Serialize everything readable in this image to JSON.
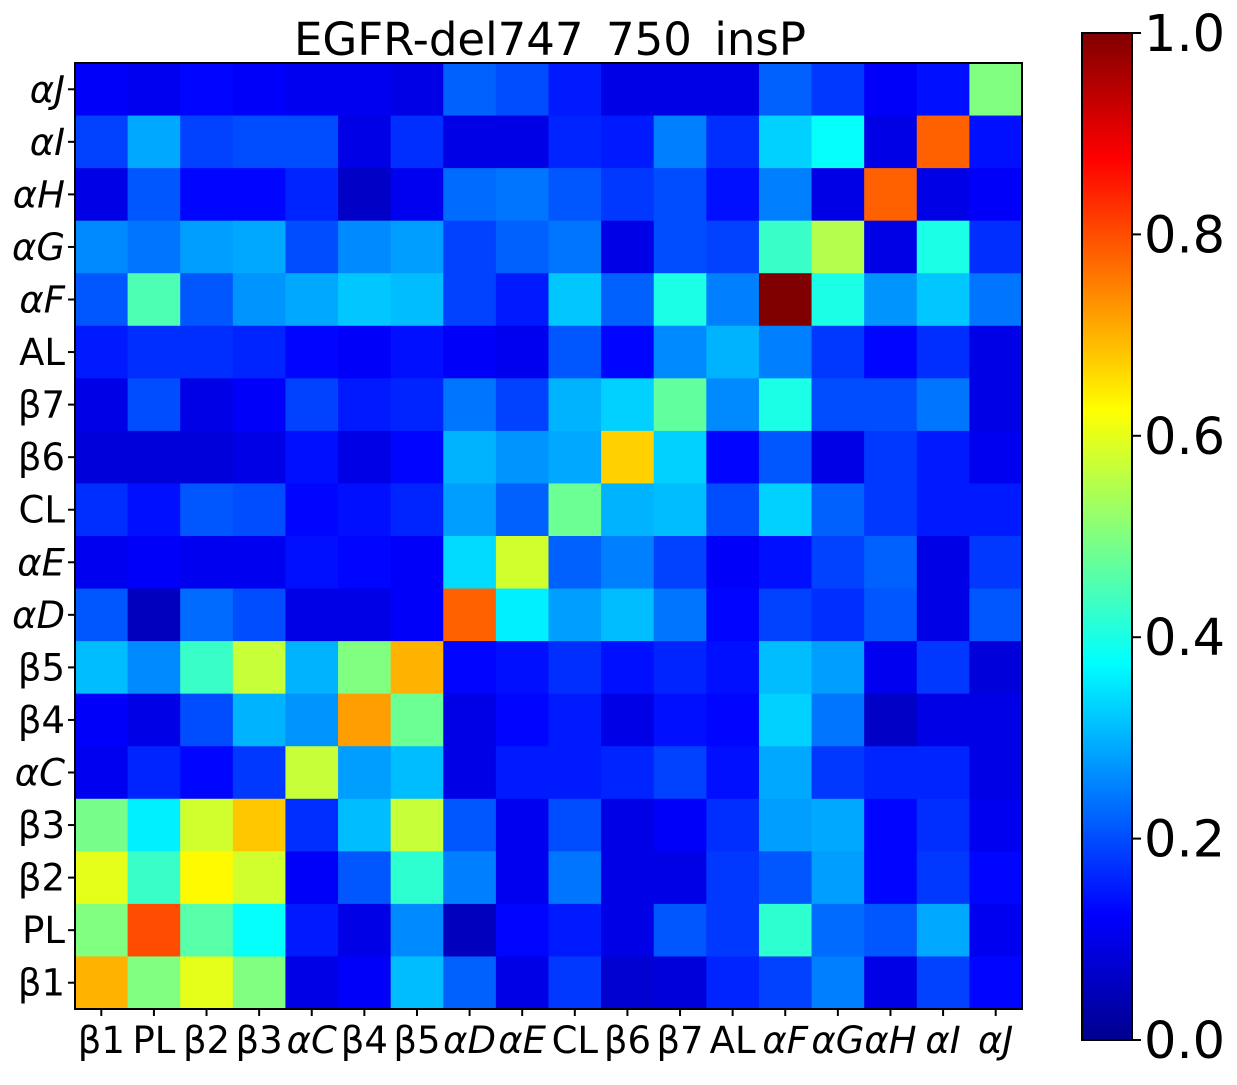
{
  "chart_data": {
    "type": "heatmap",
    "title": "EGFR-del747_750_insP",
    "xlabel": "",
    "ylabel": "",
    "x_categories": [
      "β1",
      "PL",
      "β2",
      "β3",
      "αC",
      "β4",
      "β5",
      "αD",
      "αE",
      "CL",
      "β6",
      "β7",
      "AL",
      "αF",
      "αG",
      "αH",
      "αI",
      "αJ"
    ],
    "y_categories_bottom_to_top": [
      "β1",
      "PL",
      "β2",
      "β3",
      "αC",
      "β4",
      "β5",
      "αD",
      "αE",
      "CL",
      "β6",
      "β7",
      "AL",
      "αF",
      "αG",
      "αH",
      "αI",
      "αJ"
    ],
    "italic_labels": [
      "αC",
      "αD",
      "αE",
      "αF",
      "αG",
      "αH",
      "αI",
      "αJ"
    ],
    "rows_top_to_bottom": [
      {
        "y": "αJ",
        "values": [
          0.12,
          0.11,
          0.13,
          0.12,
          0.11,
          0.11,
          0.1,
          0.22,
          0.2,
          0.15,
          0.1,
          0.1,
          0.1,
          0.22,
          0.18,
          0.12,
          0.14,
          0.5
        ]
      },
      {
        "y": "αI",
        "values": [
          0.19,
          0.29,
          0.19,
          0.2,
          0.2,
          0.1,
          0.17,
          0.1,
          0.1,
          0.16,
          0.15,
          0.25,
          0.17,
          0.33,
          0.38,
          0.1,
          0.78,
          0.14
        ]
      },
      {
        "y": "αH",
        "values": [
          0.1,
          0.21,
          0.13,
          0.13,
          0.16,
          0.07,
          0.11,
          0.23,
          0.24,
          0.21,
          0.18,
          0.2,
          0.14,
          0.25,
          0.1,
          0.78,
          0.1,
          0.12
        ]
      },
      {
        "y": "αG",
        "values": [
          0.26,
          0.24,
          0.28,
          0.29,
          0.2,
          0.26,
          0.28,
          0.19,
          0.22,
          0.24,
          0.1,
          0.2,
          0.19,
          0.43,
          0.55,
          0.1,
          0.4,
          0.17
        ]
      },
      {
        "y": "αF",
        "values": [
          0.21,
          0.45,
          0.21,
          0.27,
          0.29,
          0.32,
          0.31,
          0.19,
          0.15,
          0.32,
          0.22,
          0.4,
          0.25,
          1.0,
          0.4,
          0.27,
          0.32,
          0.24
        ]
      },
      {
        "y": "AL",
        "values": [
          0.15,
          0.17,
          0.17,
          0.16,
          0.13,
          0.12,
          0.14,
          0.12,
          0.11,
          0.21,
          0.13,
          0.26,
          0.3,
          0.25,
          0.18,
          0.13,
          0.17,
          0.1
        ]
      },
      {
        "y": "β7",
        "values": [
          0.1,
          0.2,
          0.1,
          0.12,
          0.19,
          0.15,
          0.16,
          0.24,
          0.19,
          0.3,
          0.33,
          0.47,
          0.26,
          0.4,
          0.2,
          0.2,
          0.24,
          0.1
        ]
      },
      {
        "y": "β6",
        "values": [
          0.09,
          0.09,
          0.09,
          0.1,
          0.14,
          0.1,
          0.13,
          0.3,
          0.27,
          0.29,
          0.67,
          0.33,
          0.13,
          0.21,
          0.1,
          0.18,
          0.15,
          0.11
        ]
      },
      {
        "y": "CL",
        "values": [
          0.17,
          0.14,
          0.21,
          0.2,
          0.13,
          0.14,
          0.16,
          0.28,
          0.22,
          0.48,
          0.3,
          0.31,
          0.2,
          0.33,
          0.22,
          0.18,
          0.15,
          0.15
        ]
      },
      {
        "y": "αE",
        "values": [
          0.11,
          0.12,
          0.11,
          0.11,
          0.14,
          0.13,
          0.12,
          0.34,
          0.58,
          0.22,
          0.25,
          0.19,
          0.12,
          0.14,
          0.19,
          0.22,
          0.1,
          0.18
        ]
      },
      {
        "y": "αD",
        "values": [
          0.21,
          0.06,
          0.23,
          0.2,
          0.1,
          0.1,
          0.12,
          0.78,
          0.36,
          0.28,
          0.31,
          0.24,
          0.13,
          0.19,
          0.17,
          0.21,
          0.1,
          0.21
        ]
      },
      {
        "y": "β5",
        "values": [
          0.31,
          0.26,
          0.43,
          0.57,
          0.3,
          0.5,
          0.7,
          0.13,
          0.14,
          0.17,
          0.14,
          0.16,
          0.14,
          0.31,
          0.28,
          0.11,
          0.18,
          0.09
        ]
      },
      {
        "y": "β4",
        "values": [
          0.12,
          0.1,
          0.2,
          0.3,
          0.27,
          0.72,
          0.48,
          0.1,
          0.13,
          0.15,
          0.1,
          0.14,
          0.13,
          0.33,
          0.24,
          0.07,
          0.1,
          0.1
        ]
      },
      {
        "y": "αC",
        "values": [
          0.11,
          0.16,
          0.13,
          0.18,
          0.57,
          0.28,
          0.31,
          0.1,
          0.15,
          0.15,
          0.16,
          0.19,
          0.14,
          0.29,
          0.18,
          0.16,
          0.16,
          0.1
        ]
      },
      {
        "y": "β3",
        "values": [
          0.49,
          0.36,
          0.58,
          0.68,
          0.17,
          0.31,
          0.57,
          0.21,
          0.11,
          0.2,
          0.1,
          0.12,
          0.17,
          0.28,
          0.29,
          0.13,
          0.17,
          0.11
        ]
      },
      {
        "y": "β2",
        "values": [
          0.6,
          0.43,
          0.63,
          0.58,
          0.12,
          0.21,
          0.42,
          0.25,
          0.11,
          0.24,
          0.1,
          0.1,
          0.18,
          0.21,
          0.28,
          0.13,
          0.18,
          0.13
        ]
      },
      {
        "y": "PL",
        "values": [
          0.5,
          0.8,
          0.46,
          0.38,
          0.15,
          0.1,
          0.26,
          0.06,
          0.13,
          0.15,
          0.1,
          0.21,
          0.18,
          0.42,
          0.23,
          0.21,
          0.29,
          0.11
        ]
      },
      {
        "y": "β1",
        "values": [
          0.7,
          0.5,
          0.6,
          0.5,
          0.1,
          0.12,
          0.31,
          0.22,
          0.1,
          0.18,
          0.08,
          0.09,
          0.16,
          0.19,
          0.25,
          0.1,
          0.19,
          0.13
        ]
      }
    ],
    "colormap": "jet",
    "colorbar": {
      "vmin": 0.0,
      "vmax": 1.0,
      "ticks": [
        "0.0",
        "0.2",
        "0.4",
        "0.6",
        "0.8",
        "1.0"
      ]
    },
    "grid": false,
    "legend": "none"
  }
}
